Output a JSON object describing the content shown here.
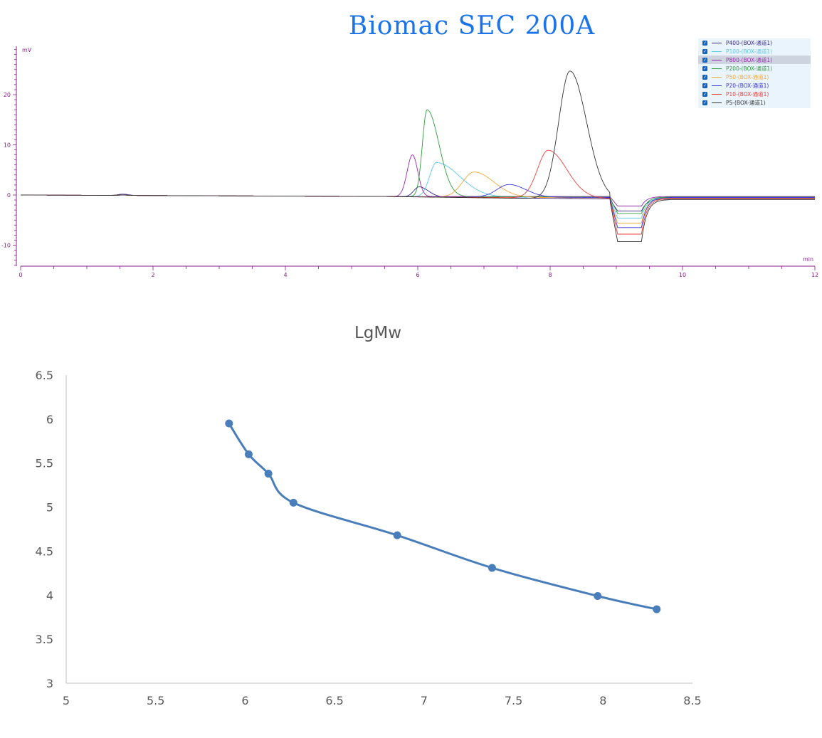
{
  "title": "Biomac SEC 200A",
  "chart_data": [
    {
      "type": "line",
      "y_unit_label": "mV",
      "x_unit_label": "min",
      "xlim": [
        0,
        12
      ],
      "ylim": [
        -14,
        30
      ],
      "x_ticks": [
        "0",
        "2",
        "4",
        "6",
        "8",
        "10",
        "12"
      ],
      "y_ticks": [
        "-10",
        "0",
        "10",
        "20"
      ],
      "legend_position": "top-right",
      "series": [
        {
          "name": "P400-(BOX-通道1)",
          "color": "#3b2a8a",
          "peak_x": 6.02,
          "peak_y": 2.0,
          "baseline": -0.8,
          "trough": -3.2
        },
        {
          "name": "P100-(BOX-通道1)",
          "color": "#5bc8e8",
          "peak_x": 6.28,
          "peak_y": 6.8,
          "baseline": -0.5,
          "trough": -4.6
        },
        {
          "name": "P800-(BOX-通道1)",
          "color": "#9b27af",
          "peak_x": 5.92,
          "peak_y": 8.3,
          "baseline": -0.3,
          "trough": -2.2
        },
        {
          "name": "P200-(BOX-通道1)",
          "color": "#2e9c3e",
          "peak_x": 6.14,
          "peak_y": 17.3,
          "baseline": -0.4,
          "trough": -3.7
        },
        {
          "name": "P50-(BOX-通道1)",
          "color": "#f2a93b",
          "peak_x": 6.85,
          "peak_y": 5.0,
          "baseline": -0.6,
          "trough": -5.6
        },
        {
          "name": "P20-(BOX-通道1)",
          "color": "#3a36d8",
          "peak_x": 7.38,
          "peak_y": 2.5,
          "baseline": -0.5,
          "trough": -6.5
        },
        {
          "name": "P10-(BOX-通道1)",
          "color": "#e8413a",
          "peak_x": 7.97,
          "peak_y": 9.5,
          "baseline": -0.7,
          "trough": -7.8
        },
        {
          "name": "P5-(BOX-通道1)",
          "color": "#333333",
          "peak_x": 8.3,
          "peak_y": 25.5,
          "baseline": -0.9,
          "trough": -9.3
        }
      ]
    },
    {
      "type": "line",
      "title": "LgMw",
      "xlim": [
        5,
        8.5
      ],
      "ylim": [
        3,
        6.5
      ],
      "x_ticks": [
        "5",
        "5.5",
        "6",
        "6.5",
        "7",
        "7.5",
        "8",
        "8.5"
      ],
      "y_ticks": [
        "3",
        "3.5",
        "4",
        "4.5",
        "5",
        "5.5",
        "6",
        "6.5"
      ],
      "x": [
        5.91,
        6.02,
        6.13,
        6.27,
        6.85,
        7.38,
        7.97,
        8.3
      ],
      "y": [
        5.95,
        5.6,
        5.38,
        5.05,
        4.68,
        4.31,
        3.99,
        3.84
      ],
      "color": "#4a7ebb"
    }
  ]
}
